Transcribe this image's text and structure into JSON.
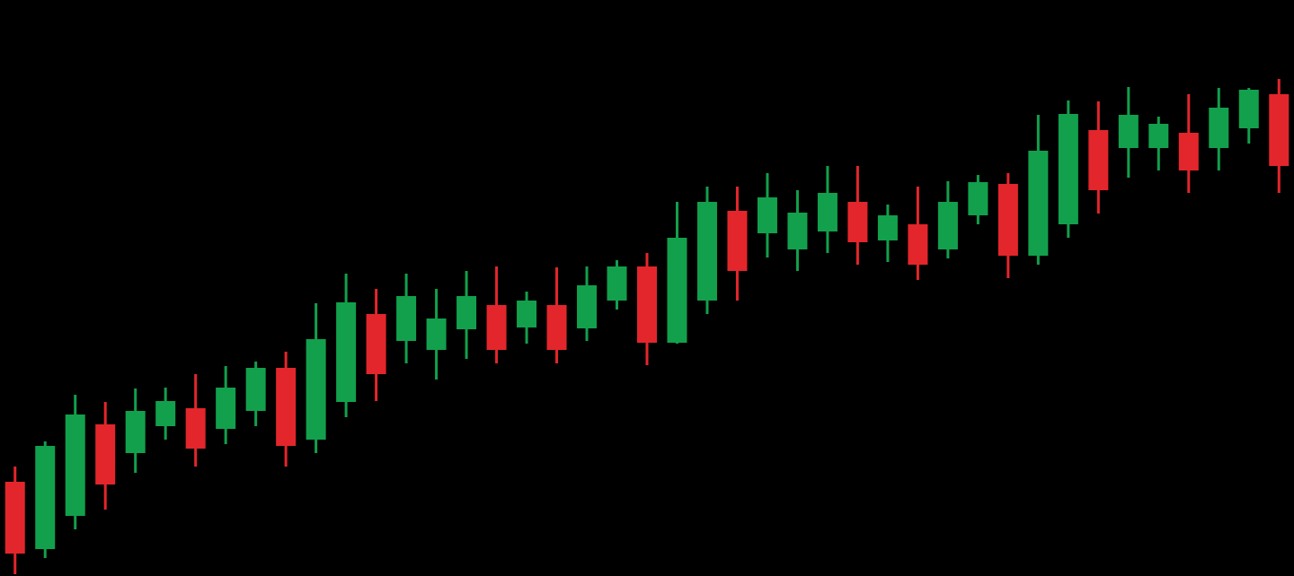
{
  "chart_data": {
    "type": "candlestick",
    "up_color": "#12a04c",
    "down_color": "#e3262b",
    "ylim": [
      0,
      642
    ],
    "open": [
      105,
      30,
      67,
      169,
      137,
      167,
      187,
      164,
      184,
      232,
      152,
      194,
      292,
      262,
      252,
      275,
      302,
      277,
      302,
      276,
      307,
      345,
      260,
      307,
      407,
      382,
      364,
      384,
      417,
      374,
      392,
      364,
      402,
      437,
      357,
      392,
      497,
      477,
      477,
      494,
      477,
      499,
      537
    ],
    "high": [
      122,
      150,
      202,
      194,
      209,
      210,
      225,
      234,
      239,
      250,
      304,
      337,
      320,
      337,
      320,
      340,
      345,
      317,
      344,
      345,
      352,
      360,
      417,
      434,
      434,
      449,
      430,
      457,
      457,
      414,
      434,
      440,
      447,
      449,
      514,
      530,
      529,
      545,
      512,
      537,
      544,
      544,
      554
    ],
    "low": [
      2,
      20,
      52,
      74,
      115,
      152,
      122,
      147,
      167,
      122,
      137,
      177,
      195,
      237,
      219,
      242,
      237,
      259,
      237,
      262,
      297,
      235,
      259,
      292,
      307,
      355,
      340,
      360,
      347,
      350,
      330,
      354,
      392,
      332,
      347,
      377,
      404,
      444,
      452,
      427,
      452,
      482,
      427
    ],
    "close": [
      25,
      145,
      180,
      102,
      184,
      195,
      142,
      210,
      232,
      145,
      264,
      305,
      225,
      312,
      287,
      312,
      252,
      307,
      252,
      324,
      345,
      260,
      377,
      417,
      340,
      422,
      405,
      427,
      372,
      402,
      347,
      417,
      439,
      357,
      474,
      515,
      430,
      514,
      504,
      452,
      522,
      542,
      457
    ]
  }
}
